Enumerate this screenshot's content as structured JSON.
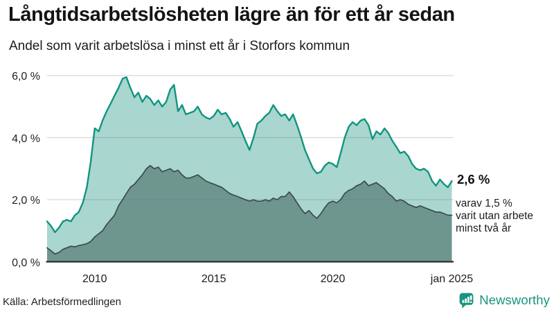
{
  "header": {
    "title": "Långtidsarbetslösheten lägre än för ett år sedan",
    "subtitle": "Andel som varit arbetslösa i minst ett år i Storfors kommun"
  },
  "annotations": {
    "latest_value": "2,6 %",
    "secondary_lines": [
      "varav 1,5 %",
      "varit utan arbete",
      "minst två år"
    ]
  },
  "footer": {
    "source": "Källa: Arbetsförmedlingen",
    "brand": "Newsworthy",
    "brand_icon": "newsworthy-speech-bubble-barchart-icon"
  },
  "colors": {
    "accent_teal": "#17947f",
    "gridline": "#dcdee3",
    "baseline": "#2c2c2c",
    "background": "#ffffff"
  },
  "chart_data": {
    "type": "area",
    "title": "Långtidsarbetslösheten lägre än för ett år sedan",
    "subtitle": "Andel som varit arbetslösa i minst ett år i Storfors kommun",
    "xlabel": "",
    "ylabel": "",
    "x_range": [
      2008,
      2025
    ],
    "y_range": [
      0,
      6
    ],
    "grid": true,
    "legend": "none",
    "y_ticks": [
      {
        "label": "6,0 %",
        "value": 6.0
      },
      {
        "label": "4,0 %",
        "value": 4.0
      },
      {
        "label": "2,0 %",
        "value": 2.0
      },
      {
        "label": "0,0 %",
        "value": 0.0
      }
    ],
    "x_ticks": [
      {
        "label": "2010",
        "value": 2010
      },
      {
        "label": "2015",
        "value": 2015
      },
      {
        "label": "2020",
        "value": 2020
      },
      {
        "label": "jan 2025",
        "value": 2025
      }
    ],
    "x": [
      2008,
      2008.17,
      2008.33,
      2008.5,
      2008.67,
      2008.83,
      2009,
      2009.17,
      2009.33,
      2009.5,
      2009.67,
      2009.83,
      2010,
      2010.17,
      2010.33,
      2010.5,
      2010.67,
      2010.83,
      2011,
      2011.17,
      2011.33,
      2011.5,
      2011.67,
      2011.83,
      2012,
      2012.17,
      2012.33,
      2012.5,
      2012.67,
      2012.83,
      2013,
      2013.17,
      2013.33,
      2013.5,
      2013.67,
      2013.83,
      2014,
      2014.17,
      2014.33,
      2014.5,
      2014.67,
      2014.83,
      2015,
      2015.17,
      2015.33,
      2015.5,
      2015.67,
      2015.83,
      2016,
      2016.17,
      2016.33,
      2016.5,
      2016.67,
      2016.83,
      2017,
      2017.17,
      2017.33,
      2017.5,
      2017.67,
      2017.83,
      2018,
      2018.17,
      2018.33,
      2018.5,
      2018.67,
      2018.83,
      2019,
      2019.17,
      2019.33,
      2019.5,
      2019.67,
      2019.83,
      2020,
      2020.17,
      2020.33,
      2020.5,
      2020.67,
      2020.83,
      2021,
      2021.17,
      2021.33,
      2021.5,
      2021.67,
      2021.83,
      2022,
      2022.17,
      2022.33,
      2022.5,
      2022.67,
      2022.83,
      2023,
      2023.17,
      2023.33,
      2023.5,
      2023.67,
      2023.83,
      2024,
      2024.17,
      2024.33,
      2024.5,
      2024.67,
      2024.83,
      2025
    ],
    "series": [
      {
        "name": "Arbetslösa minst ett år",
        "line_color": "#10947f",
        "fill_color": "#a9d6cf",
        "line_width": 2.4,
        "latest_value_pct": 2.6,
        "values": [
          1.3,
          1.15,
          0.95,
          1.1,
          1.3,
          1.35,
          1.3,
          1.5,
          1.6,
          1.9,
          2.4,
          3.2,
          4.3,
          4.2,
          4.55,
          4.85,
          5.1,
          5.35,
          5.6,
          5.9,
          5.95,
          5.6,
          5.3,
          5.45,
          5.15,
          5.35,
          5.25,
          5.05,
          5.2,
          5.0,
          5.15,
          5.55,
          5.7,
          4.85,
          5.05,
          4.75,
          4.8,
          4.85,
          5.0,
          4.75,
          4.65,
          4.6,
          4.7,
          4.9,
          4.75,
          4.8,
          4.6,
          4.35,
          4.5,
          4.2,
          3.9,
          3.6,
          4.0,
          4.45,
          4.55,
          4.7,
          4.8,
          5.05,
          4.85,
          4.7,
          4.75,
          4.55,
          4.75,
          4.4,
          4.0,
          3.6,
          3.3,
          3.0,
          2.85,
          2.9,
          3.1,
          3.2,
          3.15,
          3.05,
          3.5,
          4.0,
          4.35,
          4.5,
          4.4,
          4.55,
          4.6,
          4.4,
          3.95,
          4.2,
          4.1,
          4.3,
          4.15,
          3.9,
          3.7,
          3.5,
          3.55,
          3.4,
          3.15,
          3.0,
          2.95,
          3.0,
          2.9,
          2.6,
          2.45,
          2.65,
          2.5,
          2.4,
          2.6
        ]
      },
      {
        "name": "Arbetslösa minst två år",
        "line_color": "#3b4b4a",
        "fill_color": "#6f958f",
        "line_width": 1.7,
        "latest_value_pct": 1.5,
        "values": [
          0.45,
          0.35,
          0.25,
          0.3,
          0.4,
          0.45,
          0.5,
          0.48,
          0.52,
          0.55,
          0.58,
          0.65,
          0.8,
          0.9,
          1.0,
          1.2,
          1.35,
          1.5,
          1.8,
          2.0,
          2.2,
          2.4,
          2.5,
          2.65,
          2.8,
          3.0,
          3.1,
          3.0,
          3.05,
          2.9,
          2.95,
          3.0,
          2.9,
          2.95,
          2.8,
          2.7,
          2.7,
          2.75,
          2.8,
          2.7,
          2.6,
          2.55,
          2.5,
          2.45,
          2.4,
          2.3,
          2.2,
          2.15,
          2.1,
          2.05,
          2.0,
          1.95,
          2.0,
          1.95,
          1.95,
          2.0,
          1.95,
          2.05,
          2.0,
          2.1,
          2.1,
          2.25,
          2.1,
          1.9,
          1.7,
          1.55,
          1.65,
          1.5,
          1.4,
          1.55,
          1.75,
          1.9,
          1.95,
          1.9,
          2.0,
          2.2,
          2.3,
          2.35,
          2.45,
          2.5,
          2.6,
          2.45,
          2.5,
          2.55,
          2.45,
          2.35,
          2.2,
          2.1,
          1.95,
          2.0,
          1.95,
          1.85,
          1.8,
          1.75,
          1.8,
          1.75,
          1.7,
          1.65,
          1.6,
          1.6,
          1.55,
          1.5,
          1.5
        ]
      }
    ]
  }
}
